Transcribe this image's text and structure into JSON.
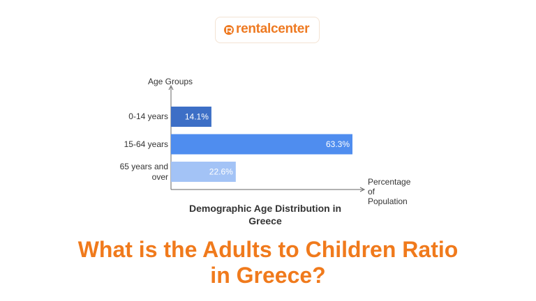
{
  "logo": "rentalcenter",
  "chart_data": {
    "type": "bar",
    "orientation": "horizontal",
    "title": "Demographic Age Distribution in Greece",
    "x_label": "Percentage of Population",
    "y_label": "Age Groups",
    "categories": [
      "0-14 years",
      "15-64 years",
      "65 years and over"
    ],
    "values": [
      14.1,
      63.3,
      22.6
    ],
    "value_labels": [
      "14.1%",
      "63.3%",
      "22.6%"
    ],
    "colors": [
      "#3d6fc6",
      "#4f8def",
      "#a3c3f6"
    ]
  },
  "headline": "What is the Adults to Children Ratio in Greece?"
}
